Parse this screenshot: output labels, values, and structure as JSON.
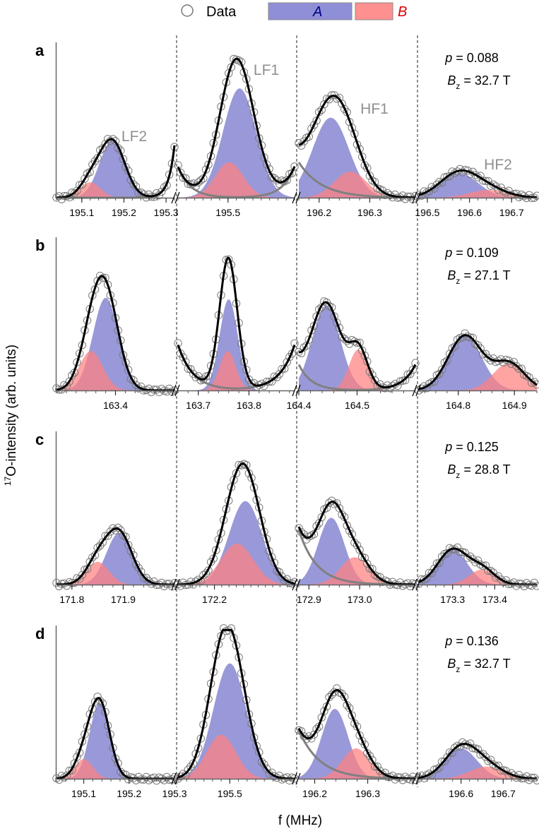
{
  "legend": {
    "data_label": "Data",
    "a_label": "A",
    "b_label": "B",
    "a_color": "#7f7fcf",
    "b_color": "#ff8080",
    "a_text_color": "#000080",
    "b_text_color": "#e00000"
  },
  "axes": {
    "xlabel": "f (MHz)",
    "ylabel_sup": "17",
    "ylabel_rest": "O-intensity (arb. units)"
  },
  "chart_data": [
    {
      "type": "area",
      "panel": "a",
      "params": {
        "p_label": "p",
        "p_value": "0.088",
        "b_label": "B",
        "b_sub": "z",
        "b_value": "32.7 T"
      },
      "peak_labels": {
        "lf2": "LF2",
        "lf1": "LF1",
        "hf1": "HF1",
        "hf2": "HF2"
      },
      "segments": [
        {
          "xlim": [
            195.04,
            195.32
          ],
          "ticks": [
            {
              "v": 195.1,
              "t": "195.1"
            },
            {
              "v": 195.2,
              "t": "195.2"
            },
            {
              "v": 195.3,
              "t": "195.3"
            }
          ],
          "components": [
            {
              "c": "A",
              "center": 195.172,
              "width": 0.03,
              "amp": 0.37
            },
            {
              "c": "B",
              "center": 195.12,
              "width": 0.024,
              "amp": 0.1
            }
          ],
          "baseline": {
            "side": "right",
            "amp": 0.34,
            "decay": 0.014
          }
        },
        {
          "xlim": [
            195.38,
            195.66
          ],
          "ticks": [
            {
              "v": 195.5,
              "t": "195.5"
            }
          ],
          "components": [
            {
              "c": "A",
              "center": 195.528,
              "width": 0.04,
              "amp": 0.71
            },
            {
              "c": "B",
              "center": 195.503,
              "width": 0.034,
              "amp": 0.23
            }
          ],
          "baseline": {
            "side": "both",
            "amp": 0.2,
            "decay": 0.03
          }
        },
        {
          "xlim": [
            196.16,
            196.39
          ],
          "ticks": [
            {
              "v": 196.2,
              "t": "196.2"
            },
            {
              "v": 196.3,
              "t": "196.3"
            }
          ],
          "components": [
            {
              "c": "A",
              "center": 196.223,
              "width": 0.036,
              "amp": 0.52
            },
            {
              "c": "B",
              "center": 196.262,
              "width": 0.032,
              "amp": 0.17
            }
          ],
          "baseline": {
            "side": "left",
            "amp": 0.23,
            "decay": 0.045
          }
        },
        {
          "xlim": [
            196.48,
            196.76
          ],
          "ticks": [
            {
              "v": 196.5,
              "t": "196.5"
            },
            {
              "v": 196.6,
              "t": "196.6"
            },
            {
              "v": 196.7,
              "t": "196.7"
            }
          ],
          "components": [
            {
              "c": "A",
              "center": 196.575,
              "width": 0.045,
              "amp": 0.16
            },
            {
              "c": "B",
              "center": 196.645,
              "width": 0.045,
              "amp": 0.05
            }
          ],
          "baseline": {
            "side": "none",
            "amp": 0,
            "decay": 1
          }
        }
      ]
    },
    {
      "type": "area",
      "panel": "b",
      "params": {
        "p_label": "p",
        "p_value": "0.109",
        "b_label": "B",
        "b_sub": "z",
        "b_value": "27.1 T"
      },
      "segments": [
        {
          "xlim": [
            163.28,
            163.52
          ],
          "ticks": [
            {
              "v": 163.4,
              "t": "163.4"
            }
          ],
          "components": [
            {
              "c": "A",
              "center": 163.38,
              "width": 0.026,
              "amp": 0.61
            },
            {
              "c": "B",
              "center": 163.35,
              "width": 0.024,
              "amp": 0.26
            }
          ],
          "baseline": {
            "side": "none",
            "amp": 0,
            "decay": 1
          }
        },
        {
          "xlim": [
            163.66,
            163.89
          ],
          "ticks": [
            {
              "v": 163.7,
              "t": "163.7"
            },
            {
              "v": 163.8,
              "t": "163.8"
            }
          ],
          "components": [
            {
              "c": "A",
              "center": 163.76,
              "width": 0.018,
              "amp": 0.6
            },
            {
              "c": "B",
              "center": 163.758,
              "width": 0.016,
              "amp": 0.26
            }
          ],
          "baseline": {
            "side": "both",
            "amp": 0.3,
            "decay": 0.03
          }
        },
        {
          "xlim": [
            164.4,
            164.6
          ],
          "ticks": [
            {
              "v": 164.4,
              "t": "164.4"
            },
            {
              "v": 164.5,
              "t": "164.5"
            }
          ],
          "components": [
            {
              "c": "A",
              "center": 164.447,
              "width": 0.024,
              "amp": 0.56
            },
            {
              "c": "B",
              "center": 164.502,
              "width": 0.016,
              "amp": 0.27
            }
          ],
          "baseline": {
            "side": "both",
            "amp": 0.17,
            "decay": 0.022
          }
        },
        {
          "xlim": [
            164.73,
            164.94
          ],
          "ticks": [
            {
              "v": 164.8,
              "t": "164.8"
            },
            {
              "v": 164.9,
              "t": "164.9"
            }
          ],
          "components": [
            {
              "c": "A",
              "center": 164.812,
              "width": 0.03,
              "amp": 0.36
            },
            {
              "c": "B",
              "center": 164.89,
              "width": 0.028,
              "amp": 0.18
            }
          ],
          "baseline": {
            "side": "none",
            "amp": 0,
            "decay": 1
          }
        }
      ]
    },
    {
      "type": "area",
      "panel": "c",
      "params": {
        "p_label": "p",
        "p_value": "0.125",
        "b_label": "B",
        "b_sub": "z",
        "b_value": "28.8 T"
      },
      "segments": [
        {
          "xlim": [
            171.77,
            172.0
          ],
          "ticks": [
            {
              "v": 171.8,
              "t": "171.8"
            },
            {
              "v": 171.9,
              "t": "171.9"
            }
          ],
          "components": [
            {
              "c": "A",
              "center": 171.892,
              "width": 0.025,
              "amp": 0.34
            },
            {
              "c": "B",
              "center": 171.85,
              "width": 0.022,
              "amp": 0.15
            }
          ],
          "baseline": {
            "side": "none",
            "amp": 0,
            "decay": 1
          }
        },
        {
          "xlim": [
            172.1,
            172.42
          ],
          "ticks": [
            {
              "v": 172.2,
              "t": "172.2"
            }
          ],
          "components": [
            {
              "c": "A",
              "center": 172.285,
              "width": 0.045,
              "amp": 0.55
            },
            {
              "c": "B",
              "center": 172.262,
              "width": 0.045,
              "amp": 0.27
            }
          ],
          "baseline": {
            "side": "none",
            "amp": 0,
            "decay": 1
          }
        },
        {
          "xlim": [
            172.88,
            173.11
          ],
          "ticks": [
            {
              "v": 172.9,
              "t": "172.9"
            },
            {
              "v": 173.0,
              "t": "173.0"
            }
          ],
          "components": [
            {
              "c": "A",
              "center": 172.944,
              "width": 0.026,
              "amp": 0.44
            },
            {
              "c": "B",
              "center": 172.99,
              "width": 0.028,
              "amp": 0.18
            }
          ],
          "baseline": {
            "side": "left",
            "amp": 0.36,
            "decay": 0.035
          }
        },
        {
          "xlim": [
            173.22,
            173.5
          ],
          "ticks": [
            {
              "v": 173.3,
              "t": "173.3"
            },
            {
              "v": 173.4,
              "t": "173.4"
            }
          ],
          "components": [
            {
              "c": "A",
              "center": 173.3,
              "width": 0.035,
              "amp": 0.23
            },
            {
              "c": "B",
              "center": 173.37,
              "width": 0.03,
              "amp": 0.1
            }
          ],
          "baseline": {
            "side": "none",
            "amp": 0,
            "decay": 1
          }
        }
      ]
    },
    {
      "type": "area",
      "panel": "d",
      "params": {
        "p_label": "p",
        "p_value": "0.136",
        "b_label": "B",
        "b_sub": "z",
        "b_value": "32.7 T"
      },
      "segments": [
        {
          "xlim": [
            195.04,
            195.3
          ],
          "ticks": [
            {
              "v": 195.1,
              "t": "195.1"
            },
            {
              "v": 195.2,
              "t": "195.2"
            },
            {
              "v": 195.3,
              "t": "195.3"
            }
          ],
          "components": [
            {
              "c": "A",
              "center": 195.135,
              "width": 0.022,
              "amp": 0.5
            },
            {
              "c": "B",
              "center": 195.1,
              "width": 0.02,
              "amp": 0.13
            }
          ],
          "baseline": {
            "side": "none",
            "amp": 0,
            "decay": 1
          }
        },
        {
          "xlim": [
            195.38,
            195.65
          ],
          "ticks": [
            {
              "v": 195.5,
              "t": "195.5"
            }
          ],
          "components": [
            {
              "c": "A",
              "center": 195.5,
              "width": 0.038,
              "amp": 0.76
            },
            {
              "c": "B",
              "center": 195.48,
              "width": 0.034,
              "amp": 0.29
            }
          ],
          "baseline": {
            "side": "none",
            "amp": 0,
            "decay": 1
          }
        },
        {
          "xlim": [
            196.17,
            196.39
          ],
          "ticks": [
            {
              "v": 196.2,
              "t": "196.2"
            },
            {
              "v": 196.3,
              "t": "196.3"
            }
          ],
          "components": [
            {
              "c": "A",
              "center": 196.238,
              "width": 0.025,
              "amp": 0.46
            },
            {
              "c": "B",
              "center": 196.278,
              "width": 0.026,
              "amp": 0.2
            }
          ],
          "baseline": {
            "side": "left",
            "amp": 0.32,
            "decay": 0.04
          }
        },
        {
          "xlim": [
            196.5,
            196.78
          ],
          "ticks": [
            {
              "v": 196.6,
              "t": "196.6"
            },
            {
              "v": 196.7,
              "t": "196.7"
            }
          ],
          "components": [
            {
              "c": "A",
              "center": 196.6,
              "width": 0.038,
              "amp": 0.2
            },
            {
              "c": "B",
              "center": 196.66,
              "width": 0.04,
              "amp": 0.08
            }
          ],
          "baseline": {
            "side": "none",
            "amp": 0,
            "decay": 1
          }
        }
      ]
    }
  ]
}
